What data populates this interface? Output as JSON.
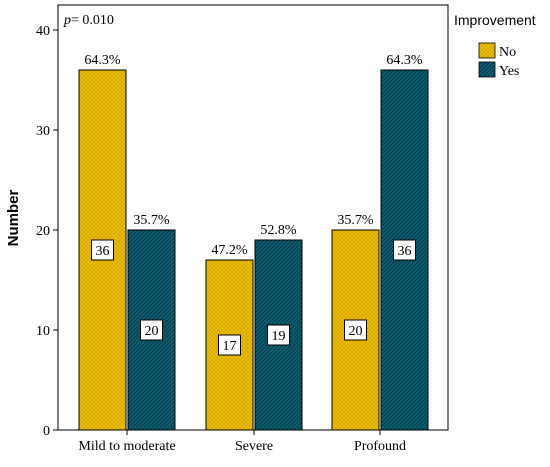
{
  "chart_data": {
    "type": "bar",
    "categories": [
      "Mild to moderate",
      "Severe",
      "Profound"
    ],
    "series": [
      {
        "name": "No",
        "values": [
          36,
          17,
          20
        ],
        "percent_labels": [
          "64.3%",
          "47.2%",
          "35.7%"
        ],
        "color": "#f2c200"
      },
      {
        "name": "Yes",
        "values": [
          20,
          19,
          36
        ],
        "percent_labels": [
          "35.7%",
          "52.8%",
          "64.3%"
        ],
        "color": "#0b5e73"
      }
    ],
    "ylabel": "Number",
    "ylim": [
      0,
      40
    ],
    "yticks": [
      0,
      10,
      20,
      30,
      40
    ],
    "annotation": {
      "p_symbol": "p",
      "p_value": "= 0.010"
    },
    "legend": {
      "title": "Improvement",
      "placement": "top-right"
    },
    "grid": false
  }
}
